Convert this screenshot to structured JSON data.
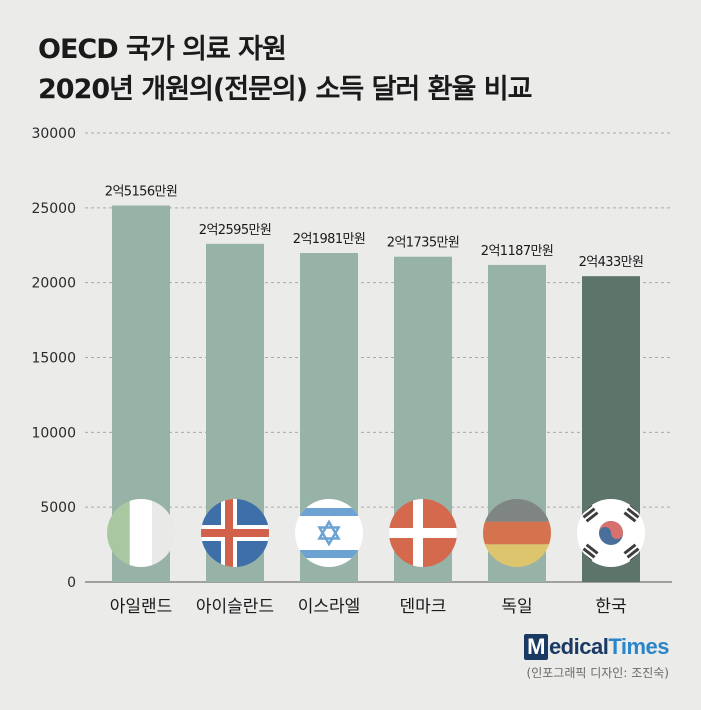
{
  "title": {
    "line1": "OECD 국가 의료 자원",
    "line2": "2020년 개원의(전문의) 소득 달러 환율 비교"
  },
  "brand": {
    "m": "M",
    "medical": "edical",
    "times": "Times"
  },
  "credit": "(인포그래픽 디자인: 조진숙)",
  "colors": {
    "bar": "#97b3a8",
    "highlight": "#5c7469",
    "grid": "#a9a9a9"
  },
  "chart_data": {
    "type": "bar",
    "categories": [
      "아일랜드",
      "아이슬란드",
      "이스라엘",
      "덴마크",
      "독일",
      "한국"
    ],
    "values": [
      25156,
      22595,
      21981,
      21735,
      21187,
      20433
    ],
    "data_labels": [
      "2억5156만원",
      "2억2595만원",
      "2억1981만원",
      "2억1735만원",
      "2억1187만원",
      "2억433만원"
    ],
    "highlight": "한국",
    "ylim": [
      0,
      30000
    ],
    "yticks": [
      0,
      5000,
      10000,
      15000,
      20000,
      25000,
      30000
    ],
    "grid": true,
    "flags": [
      "ireland-flag",
      "iceland-flag",
      "israel-flag",
      "denmark-flag",
      "germany-flag",
      "korea-flag"
    ]
  }
}
